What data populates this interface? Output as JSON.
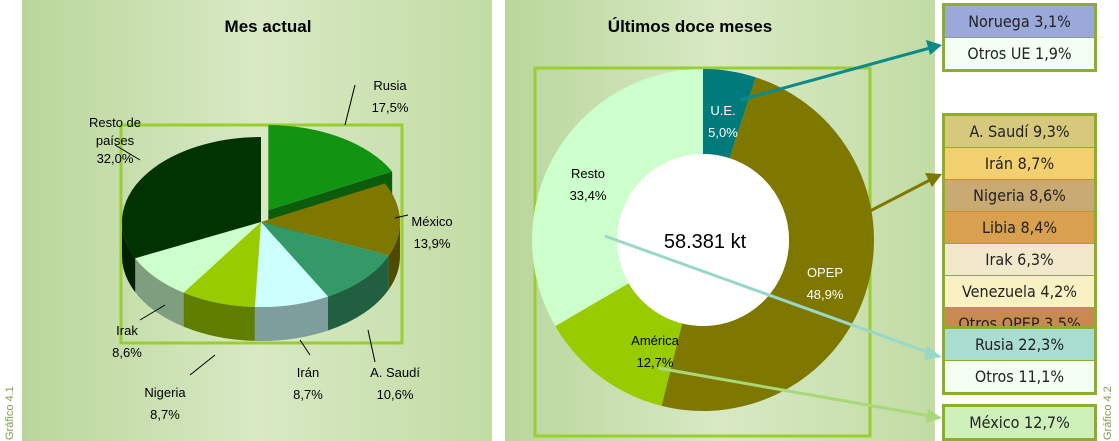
{
  "chart_data": [
    {
      "type": "pie3d",
      "title": "Mes actual",
      "categories": [
        "Rusia",
        "México",
        "A. Saudí",
        "Irán",
        "Nigeria",
        "Irak",
        "Resto de países"
      ],
      "values": [
        17.5,
        13.9,
        10.6,
        8.7,
        8.7,
        8.6,
        32.0
      ],
      "value_labels": [
        "17,5%",
        "13,9%",
        "10,6%",
        "8,7%",
        "8,7%",
        "8,6%",
        "32,0%"
      ],
      "colors": [
        "#129412",
        "#7f7800",
        "#339966",
        "#ccffff",
        "#99cc00",
        "#ccffcc",
        "#003300"
      ]
    },
    {
      "type": "donut",
      "title": "Últimos doce meses",
      "categories": [
        "U.E.",
        "OPEP",
        "América",
        "Resto"
      ],
      "values": [
        5.0,
        48.9,
        12.7,
        33.4
      ],
      "value_labels": [
        "5,0%",
        "48,9%",
        "12,7%",
        "33,4%"
      ],
      "colors": [
        "#007b7b",
        "#7f7800",
        "#99cc00",
        "#ccffcc"
      ],
      "annotation": "58.381 kt"
    }
  ],
  "breakdown": {
    "groups": [
      {
        "items": [
          {
            "name": "Noruega",
            "value": "3,1%",
            "color": "#9aa9d9"
          },
          {
            "name": "Otros UE",
            "value": "1,9%",
            "color": "#f2fff2"
          }
        ]
      },
      {
        "items": [
          {
            "name": "A. Saudí",
            "value": "9,3%",
            "color": "#d6c97c"
          },
          {
            "name": "Irán",
            "value": "8,7%",
            "color": "#f2d070"
          },
          {
            "name": "Nigeria",
            "value": "8,6%",
            "color": "#c9aa72"
          },
          {
            "name": "Libia",
            "value": "8,4%",
            "color": "#d9a050"
          },
          {
            "name": "Irak",
            "value": "6,3%",
            "color": "#f2e9cc"
          },
          {
            "name": "Venezuela",
            "value": "4,2%",
            "color": "#f9f1c2"
          },
          {
            "name": "Otros OPEP",
            "value": "3,5%",
            "color": "#c98a52"
          }
        ]
      },
      {
        "items": [
          {
            "name": "Rusia",
            "value": "22,3%",
            "color": "#a9ddd1"
          },
          {
            "name": "Otros",
            "value": "11,1%",
            "color": "#f2fff2"
          }
        ]
      },
      {
        "items": [
          {
            "name": "México",
            "value": "12,7%",
            "color": "#cdf1b9"
          }
        ]
      }
    ]
  },
  "figure_labels": [
    "Gráfico 4.1",
    "Gráfico 4.2"
  ]
}
